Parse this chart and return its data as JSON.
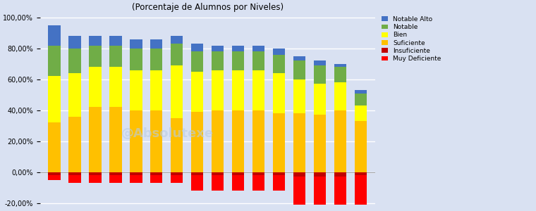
{
  "title": "(Porcentaje de Alumnos por Niveles)",
  "ylim": [
    -23,
    103
  ],
  "yticks": [
    -20,
    0,
    20,
    40,
    60,
    80,
    100
  ],
  "ytick_labels": [
    "-20,00%",
    "0,00%",
    "20,00%",
    "40,00%",
    "60,00%",
    "80,00%",
    "100,00%"
  ],
  "bar_width": 0.6,
  "colors": {
    "notable_alto": "#4472C4",
    "notable": "#70AD47",
    "bien": "#FFFF00",
    "suficiente": "#FFC000",
    "insuficiente": "#C00000",
    "muy_deficiente": "#FF0000"
  },
  "legend_labels": [
    "Notable Alto",
    "Notable",
    "Bien",
    "Suficiente",
    "Insuficiente",
    "Muy Deficiente"
  ],
  "data": [
    {
      "notable_alto": 13,
      "notable": 20,
      "bien": 30,
      "suficiente": 32,
      "insuficiente": 2,
      "muy_deficiente": -5
    },
    {
      "notable_alto": 8,
      "notable": 16,
      "bien": 28,
      "suficiente": 36,
      "insuficiente": 2,
      "muy_deficiente": -7
    },
    {
      "notable_alto": 6,
      "notable": 14,
      "bien": 26,
      "suficiente": 42,
      "insuficiente": 2,
      "muy_deficiente": -7
    },
    {
      "notable_alto": 6,
      "notable": 14,
      "bien": 26,
      "suficiente": 42,
      "insuficiente": 2,
      "muy_deficiente": -7
    },
    {
      "notable_alto": 6,
      "notable": 14,
      "bien": 26,
      "suficiente": 40,
      "insuficiente": 2,
      "muy_deficiente": -7
    },
    {
      "notable_alto": 6,
      "notable": 14,
      "bien": 26,
      "suficiente": 40,
      "insuficiente": 2,
      "muy_deficiente": -7
    },
    {
      "notable_alto": 5,
      "notable": 14,
      "bien": 34,
      "suficiente": 35,
      "insuficiente": 2,
      "muy_deficiente": -7
    },
    {
      "notable_alto": 5,
      "notable": 13,
      "bien": 26,
      "suficiente": 39,
      "insuficiente": 2,
      "muy_deficiente": -12
    },
    {
      "notable_alto": 4,
      "notable": 12,
      "bien": 26,
      "suficiente": 40,
      "insuficiente": 2,
      "muy_deficiente": -12
    },
    {
      "notable_alto": 4,
      "notable": 12,
      "bien": 26,
      "suficiente": 40,
      "insuficiente": 2,
      "muy_deficiente": -12
    },
    {
      "notable_alto": 4,
      "notable": 12,
      "bien": 26,
      "suficiente": 40,
      "insuficiente": 2,
      "muy_deficiente": -12
    },
    {
      "notable_alto": 4,
      "notable": 12,
      "bien": 26,
      "suficiente": 38,
      "insuficiente": 2,
      "muy_deficiente": -12
    },
    {
      "notable_alto": 3,
      "notable": 12,
      "bien": 22,
      "suficiente": 38,
      "insuficiente": 3,
      "muy_deficiente": -21
    },
    {
      "notable_alto": 3,
      "notable": 12,
      "bien": 20,
      "suficiente": 37,
      "insuficiente": 3,
      "muy_deficiente": -21
    },
    {
      "notable_alto": 2,
      "notable": 10,
      "bien": 18,
      "suficiente": 40,
      "insuficiente": 3,
      "muy_deficiente": -21
    },
    {
      "notable_alto": 2,
      "notable": 8,
      "bien": 10,
      "suficiente": 33,
      "insuficiente": 2,
      "muy_deficiente": -21
    }
  ],
  "background_color": "#D9E1F2",
  "plot_bg_color": "#D9E1F2",
  "grid_color": "#FFFFFF",
  "watermark": "@Absolutexe"
}
